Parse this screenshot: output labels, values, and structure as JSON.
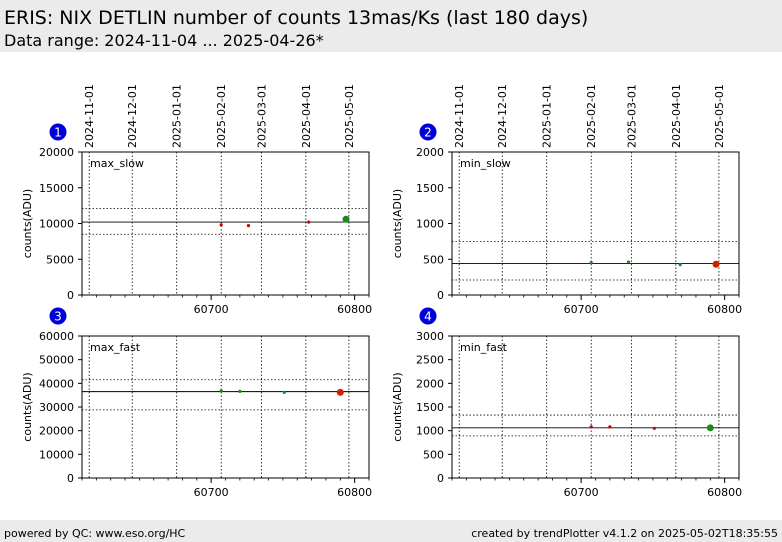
{
  "header": {
    "title": "ERIS: NIX DETLIN number of counts 13mas/Ks (last 180 days)",
    "subtitle": "Data range: 2024-11-04 ... 2025-04-26*"
  },
  "footer": {
    "left": "powered by QC: www.eso.org/HC",
    "right": "created by trendPlotter v4.1.2 on 2025-05-02T18:35:55"
  },
  "date_ticks": [
    "2024-11-01",
    "2024-12-01",
    "2025-01-01",
    "2025-02-01",
    "2025-03-01",
    "2025-04-01",
    "2025-05-01"
  ],
  "date_tick_mjd": [
    60615,
    60645,
    60676,
    60707,
    60735,
    60766,
    60796
  ],
  "chart_data": [
    {
      "type": "scatter",
      "badge": "1",
      "label": "max_slow",
      "ylabel": "counts(ADU)",
      "xlim": [
        60610,
        60810
      ],
      "ylim": [
        0,
        20000
      ],
      "xticks": [
        60700,
        60800
      ],
      "yticks": [
        0,
        5000,
        10000,
        15000,
        20000
      ],
      "ref_line": 10200,
      "band": [
        8500,
        12100
      ],
      "points": [
        {
          "x": 60707,
          "y": 9800,
          "color": "#cc0000",
          "big": false
        },
        {
          "x": 60726,
          "y": 9700,
          "color": "#cc0000",
          "big": false
        },
        {
          "x": 60768,
          "y": 10200,
          "color": "#cc0000",
          "big": false
        },
        {
          "x": 60794,
          "y": 10600,
          "color": "#1a8a1a",
          "big": true
        }
      ]
    },
    {
      "type": "scatter",
      "badge": "2",
      "label": "min_slow",
      "ylabel": "counts(ADU)",
      "xlim": [
        60610,
        60810
      ],
      "ylim": [
        0,
        2000
      ],
      "xticks": [
        60700,
        60800
      ],
      "yticks": [
        0,
        500,
        1000,
        1500,
        2000
      ],
      "ref_line": 440,
      "band": [
        210,
        750
      ],
      "points": [
        {
          "x": 60707,
          "y": 455,
          "color": "#1a8a1a",
          "big": false
        },
        {
          "x": 60733,
          "y": 460,
          "color": "#1a8a1a",
          "big": false
        },
        {
          "x": 60769,
          "y": 425,
          "color": "#1a8a1a",
          "big": false
        },
        {
          "x": 60794,
          "y": 430,
          "color": "#cc2200",
          "big": true
        }
      ]
    },
    {
      "type": "scatter",
      "badge": "3",
      "label": "max_fast",
      "ylabel": "counts(ADU)",
      "xlim": [
        60610,
        60810
      ],
      "ylim": [
        0,
        60000
      ],
      "xticks": [
        60700,
        60800
      ],
      "yticks": [
        0,
        10000,
        20000,
        30000,
        40000,
        50000,
        60000
      ],
      "ref_line": 36500,
      "band": [
        28800,
        41500
      ],
      "points": [
        {
          "x": 60707,
          "y": 36800,
          "color": "#1a8a1a",
          "big": false
        },
        {
          "x": 60720,
          "y": 36600,
          "color": "#1a8a1a",
          "big": false
        },
        {
          "x": 60751,
          "y": 36200,
          "color": "#1a8a1a",
          "big": false
        },
        {
          "x": 60790,
          "y": 36200,
          "color": "#cc2200",
          "big": true
        }
      ]
    },
    {
      "type": "scatter",
      "badge": "4",
      "label": "min_fast",
      "ylabel": "counts(ADU)",
      "xlim": [
        60610,
        60810
      ],
      "ylim": [
        0,
        3000
      ],
      "xticks": [
        60700,
        60800
      ],
      "yticks": [
        0,
        500,
        1000,
        1500,
        2000,
        2500,
        3000
      ],
      "ref_line": 1060,
      "band": [
        890,
        1330
      ],
      "points": [
        {
          "x": 60707,
          "y": 1080,
          "color": "#cc0000",
          "big": false
        },
        {
          "x": 60720,
          "y": 1080,
          "color": "#cc0000",
          "big": false
        },
        {
          "x": 60751,
          "y": 1050,
          "color": "#cc0000",
          "big": false
        },
        {
          "x": 60790,
          "y": 1060,
          "color": "#1a8a1a",
          "big": true
        }
      ]
    }
  ]
}
